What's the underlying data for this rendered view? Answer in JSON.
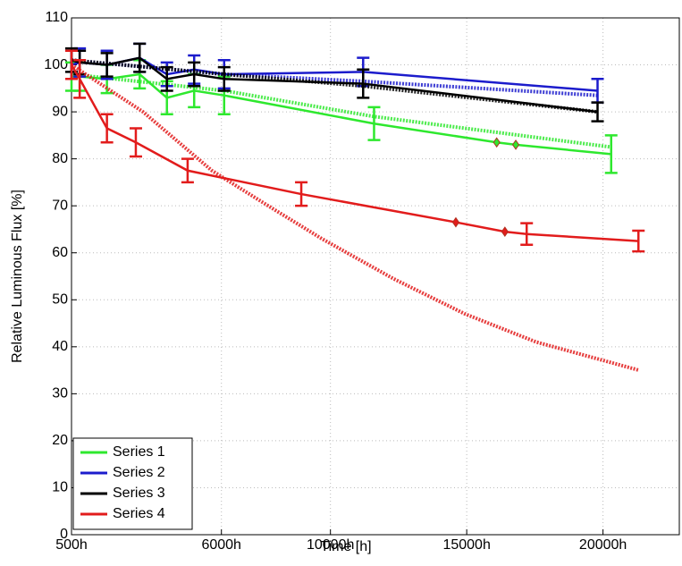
{
  "chart_data": {
    "type": "line",
    "xlabel": "Time [h]",
    "ylabel": "Relative Luminous Flux [%]",
    "xlim": [
      500,
      22800
    ],
    "ylim": [
      0,
      110
    ],
    "xticks": [
      {
        "value": 500,
        "label": "500h"
      },
      {
        "value": 6000,
        "label": "6000h"
      },
      {
        "value": 10000,
        "label": "10000h"
      },
      {
        "value": 15000,
        "label": "15000h"
      },
      {
        "value": 20000,
        "label": "20000h"
      }
    ],
    "yticks": [
      0,
      10,
      20,
      30,
      40,
      50,
      60,
      70,
      80,
      90,
      100,
      110
    ],
    "grid": true,
    "legend": "lower left",
    "series": [
      {
        "name": "Series 1",
        "color": "#2ee82e",
        "x": [
          500,
          800,
          1800,
          3000,
          4000,
          5000,
          6100,
          11600,
          16100,
          16800,
          20300
        ],
        "values": [
          97.5,
          97.5,
          97,
          98,
          93,
          94.5,
          93.5,
          87.5,
          83.5,
          83,
          81
        ],
        "errors": [
          3,
          3,
          3,
          3,
          3.5,
          3.5,
          4,
          3.5,
          null,
          null,
          4
        ],
        "fit": {
          "x": [
            500,
            6100,
            11600,
            20300
          ],
          "values": [
            98,
            94.5,
            89,
            82.5
          ]
        }
      },
      {
        "name": "Series 2",
        "color": "#1c1ccc",
        "x": [
          500,
          800,
          1800,
          3000,
          4000,
          5000,
          6100,
          11200,
          19800
        ],
        "values": [
          100,
          100.5,
          100,
          101.5,
          98,
          99,
          98,
          98.5,
          94.5
        ],
        "errors": [
          3,
          3,
          3,
          3,
          2.5,
          3,
          3,
          3,
          2.5
        ],
        "fit": {
          "x": [
            500,
            6100,
            11200,
            19800
          ],
          "values": [
            101,
            98,
            96.5,
            93.5
          ]
        }
      },
      {
        "name": "Series 3",
        "color": "#000000",
        "x": [
          500,
          800,
          1800,
          3000,
          4000,
          5000,
          6100,
          11200,
          19800
        ],
        "values": [
          101,
          100.5,
          100,
          101.5,
          97,
          98,
          97,
          96,
          90
        ],
        "errors": [
          2.5,
          2.5,
          2.5,
          3,
          2.5,
          2.5,
          2.5,
          3,
          2
        ],
        "fit": {
          "x": [
            500,
            6100,
            11200,
            19800
          ],
          "values": [
            101,
            98,
            95.5,
            90
          ]
        }
      },
      {
        "name": "Series 4",
        "color": "#e21c1c",
        "x": [
          500,
          800,
          1800,
          2860,
          4760,
          8930,
          14600,
          16400,
          17200,
          21300
        ],
        "values": [
          100,
          97,
          86.5,
          83.5,
          77.5,
          72.5,
          66.5,
          64.5,
          64,
          62.5
        ],
        "errors": [
          3,
          4,
          3,
          3,
          2.5,
          2.5,
          null,
          null,
          2.3,
          2.2
        ],
        "fit": {
          "x": [
            500,
            3124,
            5650,
            7716,
            9683,
            12307,
            14931,
            17555,
            21326
          ],
          "values": [
            100,
            90,
            77.5,
            70,
            63,
            54.5,
            47,
            41,
            35
          ]
        }
      }
    ]
  }
}
